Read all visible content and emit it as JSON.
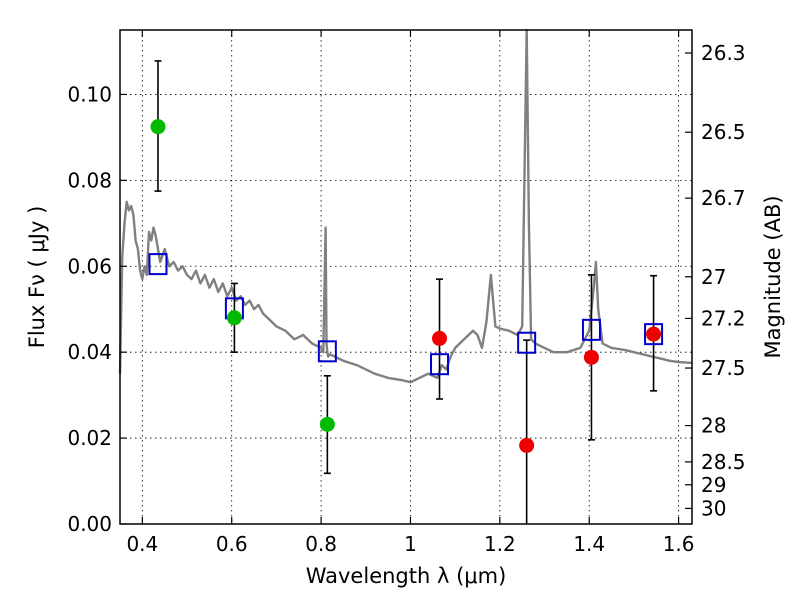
{
  "chart_data": {
    "type": "scatter",
    "title": "",
    "xlabel": "Wavelength  λ (μm)",
    "ylabel": "Flux  Fν  ( μJy )",
    "ylabel_right": "Magnitude (AB)",
    "xlim": [
      0.35,
      1.63
    ],
    "ylim": [
      0.0,
      0.115
    ],
    "grid": true,
    "x_ticks": [
      0.4,
      0.6,
      0.8,
      1.0,
      1.2,
      1.4,
      1.6
    ],
    "x_tick_labels": [
      "0.4",
      "0.6",
      "0.8",
      "1",
      "1.2",
      "1.4",
      "1.6"
    ],
    "y_ticks": [
      0.0,
      0.02,
      0.04,
      0.06,
      0.08,
      0.1
    ],
    "y_tick_labels": [
      "0.00",
      "0.02",
      "0.04",
      "0.06",
      "0.08",
      "0.10"
    ],
    "mag_ticks": [
      26.3,
      26.5,
      26.7,
      27,
      27.2,
      27.5,
      28,
      28.5,
      29,
      30
    ],
    "mag_tick_labels": [
      "26.3",
      "26.5",
      "26.7",
      "27",
      "27.2",
      "27.5",
      "28",
      "28.5",
      "29",
      "30"
    ],
    "colors": {
      "sed": "#808080",
      "green": "#00bb00",
      "red": "#ee0000",
      "model": "#0000cc",
      "errorbar": "#000000"
    },
    "series": [
      {
        "name": "detections (green)",
        "marker": "circle",
        "color": "#00bb00",
        "points": [
          {
            "x": 0.435,
            "y": 0.0925,
            "yerr_low": 0.0775,
            "yerr_high": 0.1078
          },
          {
            "x": 0.606,
            "y": 0.048,
            "yerr_low": 0.04,
            "yerr_high": 0.056
          },
          {
            "x": 0.814,
            "y": 0.0232,
            "yerr_low": 0.0118,
            "yerr_high": 0.0345
          }
        ]
      },
      {
        "name": "detections (red)",
        "marker": "circle",
        "color": "#ee0000",
        "points": [
          {
            "x": 1.065,
            "y": 0.0432,
            "yerr_low": 0.0291,
            "yerr_high": 0.057
          },
          {
            "x": 1.26,
            "y": 0.0183,
            "yerr_low": 0.0,
            "yerr_high": 0.0428
          },
          {
            "x": 1.405,
            "y": 0.0388,
            "yerr_low": 0.0196,
            "yerr_high": 0.058
          },
          {
            "x": 1.544,
            "y": 0.0442,
            "yerr_low": 0.031,
            "yerr_high": 0.0578
          }
        ]
      },
      {
        "name": "model band flux",
        "marker": "square",
        "color": "#0000cc",
        "points": [
          {
            "x": 0.435,
            "y": 0.0605
          },
          {
            "x": 0.606,
            "y": 0.0502
          },
          {
            "x": 0.814,
            "y": 0.0402
          },
          {
            "x": 1.065,
            "y": 0.0372
          },
          {
            "x": 1.26,
            "y": 0.0422
          },
          {
            "x": 1.405,
            "y": 0.0452
          },
          {
            "x": 1.544,
            "y": 0.0442
          }
        ]
      },
      {
        "name": "model SED",
        "type": "line",
        "color": "#808080",
        "x": [
          0.35,
          0.355,
          0.36,
          0.365,
          0.37,
          0.375,
          0.38,
          0.385,
          0.39,
          0.395,
          0.4,
          0.405,
          0.41,
          0.415,
          0.42,
          0.425,
          0.43,
          0.44,
          0.45,
          0.46,
          0.47,
          0.48,
          0.49,
          0.5,
          0.51,
          0.52,
          0.53,
          0.54,
          0.55,
          0.56,
          0.57,
          0.58,
          0.59,
          0.6,
          0.61,
          0.62,
          0.63,
          0.64,
          0.65,
          0.66,
          0.67,
          0.68,
          0.7,
          0.72,
          0.74,
          0.76,
          0.78,
          0.8,
          0.805,
          0.81,
          0.812,
          0.814,
          0.816,
          0.82,
          0.83,
          0.85,
          0.88,
          0.9,
          0.92,
          0.95,
          0.98,
          1.0,
          1.02,
          1.04,
          1.06,
          1.07,
          1.08,
          1.09,
          1.1,
          1.12,
          1.14,
          1.15,
          1.16,
          1.17,
          1.18,
          1.185,
          1.19,
          1.2,
          1.22,
          1.24,
          1.25,
          1.255,
          1.26,
          1.265,
          1.27,
          1.28,
          1.3,
          1.32,
          1.35,
          1.38,
          1.4,
          1.41,
          1.415,
          1.42,
          1.43,
          1.45,
          1.48,
          1.5,
          1.52,
          1.54,
          1.56,
          1.58,
          1.6,
          1.63
        ],
        "y": [
          0.035,
          0.062,
          0.07,
          0.075,
          0.073,
          0.074,
          0.072,
          0.066,
          0.064,
          0.059,
          0.057,
          0.06,
          0.058,
          0.068,
          0.066,
          0.069,
          0.067,
          0.061,
          0.064,
          0.06,
          0.061,
          0.059,
          0.06,
          0.058,
          0.057,
          0.059,
          0.056,
          0.058,
          0.055,
          0.057,
          0.054,
          0.056,
          0.053,
          0.055,
          0.052,
          0.053,
          0.051,
          0.052,
          0.05,
          0.051,
          0.049,
          0.048,
          0.046,
          0.045,
          0.043,
          0.044,
          0.042,
          0.041,
          0.04,
          0.069,
          0.042,
          0.04,
          0.039,
          0.0395,
          0.039,
          0.038,
          0.037,
          0.036,
          0.035,
          0.034,
          0.0335,
          0.033,
          0.034,
          0.035,
          0.034,
          0.037,
          0.036,
          0.039,
          0.041,
          0.043,
          0.045,
          0.044,
          0.041,
          0.047,
          0.058,
          0.052,
          0.046,
          0.0455,
          0.045,
          0.044,
          0.046,
          0.08,
          0.115,
          0.07,
          0.043,
          0.042,
          0.041,
          0.04,
          0.04,
          0.041,
          0.045,
          0.055,
          0.061,
          0.05,
          0.042,
          0.041,
          0.0405,
          0.04,
          0.0395,
          0.039,
          0.0385,
          0.038,
          0.0377,
          0.0375
        ]
      }
    ]
  }
}
